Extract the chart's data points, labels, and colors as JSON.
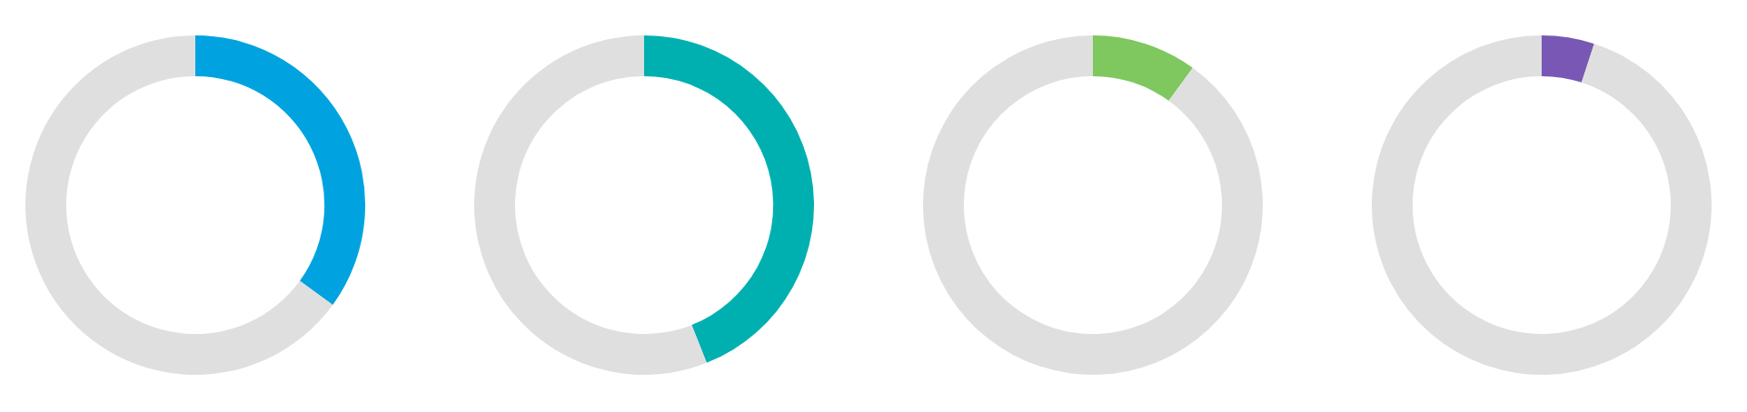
{
  "chart_data": [
    {
      "type": "donut",
      "categories": [
        null,
        null
      ],
      "values": [
        35,
        65
      ],
      "colors": [
        "#00a3e0",
        "#dfdfdf"
      ]
    },
    {
      "type": "donut",
      "categories": [
        null,
        null
      ],
      "values": [
        44,
        56
      ],
      "colors": [
        "#00b0b0",
        "#dfdfdf"
      ]
    },
    {
      "type": "donut",
      "categories": [
        null,
        null
      ],
      "values": [
        10,
        90
      ],
      "colors": [
        "#7ec85f",
        "#dfdfdf"
      ]
    },
    {
      "type": "donut",
      "categories": [
        null,
        null
      ],
      "values": [
        5,
        95
      ],
      "colors": [
        "#7858b4",
        "#dfdfdf"
      ]
    }
  ]
}
